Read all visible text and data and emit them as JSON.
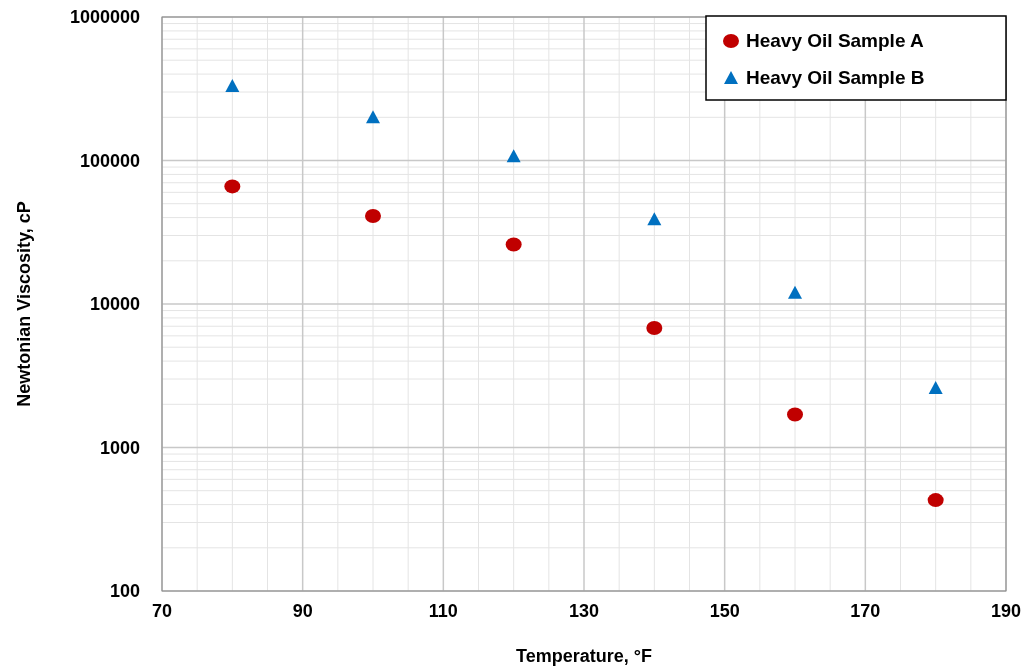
{
  "chart_data": {
    "type": "scatter",
    "xlabel": "Temperature, °F",
    "ylabel": "Newtonian Viscosity, cP",
    "x": [
      80,
      100,
      120,
      140,
      160,
      180
    ],
    "series": [
      {
        "name": "Heavy Oil Sample A",
        "color": "#c00000",
        "marker": "circle",
        "values": [
          66000,
          41000,
          26000,
          6800,
          1700,
          430
        ]
      },
      {
        "name": "Heavy Oil Sample B",
        "color": "#0070c0",
        "marker": "triangle",
        "values": [
          330000,
          200000,
          107000,
          39000,
          12000,
          2600
        ]
      }
    ],
    "xlim": [
      70,
      190
    ],
    "xticks": [
      70,
      90,
      110,
      130,
      150,
      170,
      190
    ],
    "ylim": [
      100,
      1000000
    ],
    "yticks": [
      100,
      1000,
      10000,
      100000,
      1000000
    ],
    "log": "y",
    "grid": true,
    "legend": "top right"
  }
}
